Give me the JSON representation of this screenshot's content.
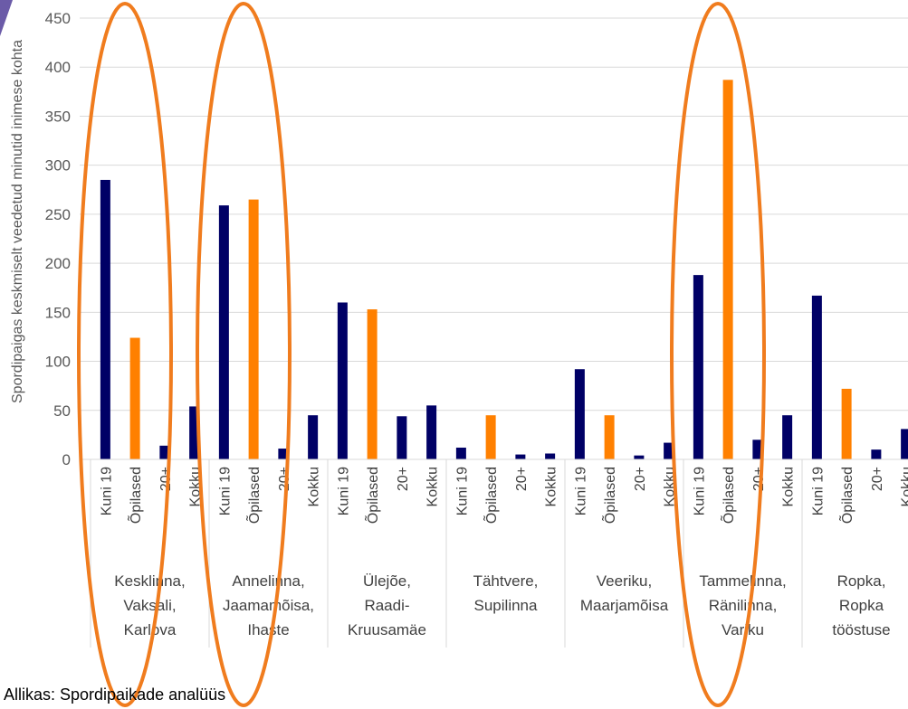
{
  "chart_data": {
    "type": "bar",
    "ylabel": "Spordipaigas keskmiselt veedetud minutid inimese kohta",
    "ylim": [
      0,
      450
    ],
    "yticks": [
      0,
      50,
      100,
      150,
      200,
      250,
      300,
      350,
      400,
      450
    ],
    "grid": true,
    "subcategories": [
      "Kuni 19",
      "Õpilased",
      "20+",
      "Kokku"
    ],
    "subcategory_colors": [
      "#000066",
      "#FF8000",
      "#000066",
      "#000066"
    ],
    "groups": [
      {
        "lines": [
          "Kesklinna,",
          "Vaksali,",
          "Karlova"
        ],
        "values": [
          285,
          124,
          14,
          54
        ],
        "highlighted": true
      },
      {
        "lines": [
          "Annelinna,",
          "Jaamamõisa,",
          "Ihaste"
        ],
        "values": [
          259,
          265,
          11,
          45
        ],
        "highlighted": true
      },
      {
        "lines": [
          "Ülejõe,",
          "Raadi-",
          "Kruusamäe"
        ],
        "values": [
          160,
          153,
          44,
          55
        ],
        "highlighted": false
      },
      {
        "lines": [
          "Tähtvere,",
          "Supilinna"
        ],
        "values": [
          12,
          45,
          5,
          6
        ],
        "highlighted": false
      },
      {
        "lines": [
          "Veeriku,",
          "Maarjamõisa"
        ],
        "values": [
          92,
          45,
          4,
          17
        ],
        "highlighted": false
      },
      {
        "lines": [
          "Tammelinna,",
          "Ränilinna,",
          "Variku"
        ],
        "values": [
          188,
          387,
          20,
          45
        ],
        "highlighted": true
      },
      {
        "lines": [
          "Ropka,",
          "Ropka",
          "tööstuse"
        ],
        "values": [
          167,
          72,
          10,
          31
        ],
        "highlighted": false
      }
    ],
    "highlight_color": "#F07C1E"
  },
  "source": "Allikas: Spordipaikade analüüs"
}
